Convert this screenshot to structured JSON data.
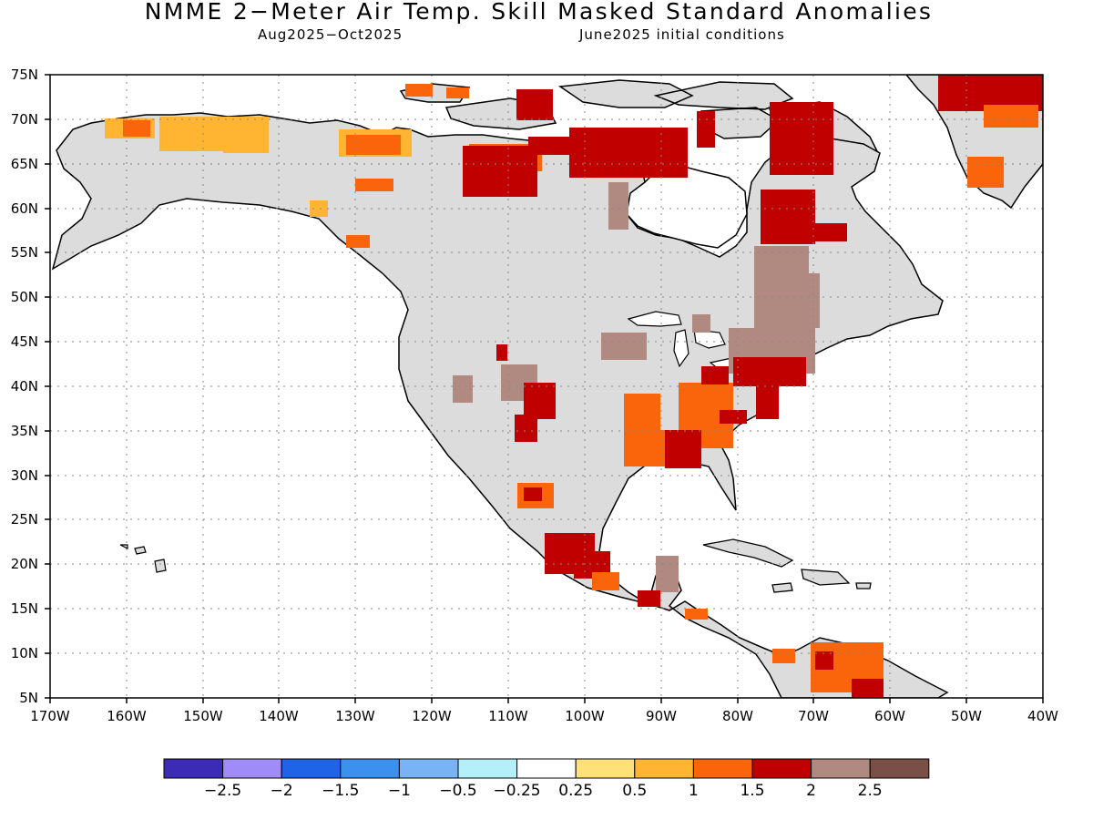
{
  "title": "NMME 2−Meter Air Temp. Skill Masked Standard Anomalies",
  "subtitle_period": "Aug2025−Oct2025",
  "subtitle_ic": "June2025 initial conditions",
  "map": {
    "lon_range": [
      -170,
      -40
    ],
    "lat_range": [
      5,
      75
    ],
    "lat_ticks": [
      "5N",
      "10N",
      "15N",
      "20N",
      "25N",
      "30N",
      "35N",
      "40N",
      "45N",
      "50N",
      "55N",
      "60N",
      "65N",
      "70N",
      "75N"
    ],
    "lon_ticks": [
      "170W",
      "160W",
      "150W",
      "140W",
      "130W",
      "120W",
      "110W",
      "100W",
      "90W",
      "80W",
      "70W",
      "60W",
      "50W",
      "40W"
    ],
    "grid": true
  },
  "colorbar": {
    "colors": [
      "#3c2bb4",
      "#a08cf8",
      "#1f64e6",
      "#3c91ef",
      "#78b4f5",
      "#b4f0fa",
      "#ffffff",
      "#ffe178",
      "#ffb432",
      "#fa640a",
      "#c00000",
      "#b08a80",
      "#7a5046"
    ],
    "labels": [
      "−2.5",
      "−2",
      "−1.5",
      "−1",
      "−0.5",
      "−0.25",
      "0.25",
      "0.5",
      "1",
      "1.5",
      "2",
      "2.5"
    ]
  },
  "colors": {
    "land_no_skill": "#dcdcdc",
    "coastline": "#000000"
  }
}
